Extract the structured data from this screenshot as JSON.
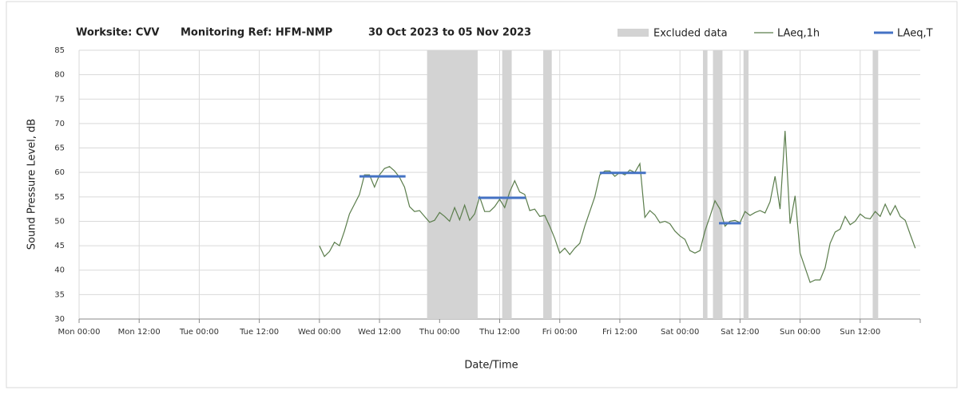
{
  "chart_data": {
    "type": "line",
    "title_parts": [
      "Worksite: CVV",
      "Monitoring Ref: HFM-NMP",
      "30 Oct 2023 to 05 Nov 2023"
    ],
    "y_label": "Sound Pressure Level, dB",
    "x_label": "Date/Time",
    "xlim": [
      0,
      168
    ],
    "xticks": [
      {
        "value": 0,
        "label": "Mon 00:00"
      },
      {
        "value": 12,
        "label": "Mon 12:00"
      },
      {
        "value": 24,
        "label": "Tue 00:00"
      },
      {
        "value": 36,
        "label": "Tue 12:00"
      },
      {
        "value": 48,
        "label": "Wed 00:00"
      },
      {
        "value": 60,
        "label": "Wed 12:00"
      },
      {
        "value": 72,
        "label": "Thu 00:00"
      },
      {
        "value": 84,
        "label": "Thu 12:00"
      },
      {
        "value": 96,
        "label": "Fri 00:00"
      },
      {
        "value": 108,
        "label": "Fri 12:00"
      },
      {
        "value": 120,
        "label": "Sat 00:00"
      },
      {
        "value": 132,
        "label": "Sat 12:00"
      },
      {
        "value": 144,
        "label": "Sun 00:00"
      },
      {
        "value": 156,
        "label": "Sun 12:00"
      }
    ],
    "ylim": [
      30,
      85
    ],
    "yticks": [
      30,
      35,
      40,
      45,
      50,
      55,
      60,
      65,
      70,
      75,
      80,
      85
    ],
    "grid": true,
    "series": [
      {
        "name": "Excluded data",
        "color": "#d3d3d3",
        "ranges": [
          [
            69.5,
            79.6
          ],
          [
            84.5,
            86.4
          ],
          [
            92.7,
            94.4
          ],
          [
            124.6,
            125.5
          ],
          [
            126.6,
            128.5
          ],
          [
            132.7,
            133.7
          ],
          [
            158.5,
            159.6
          ]
        ]
      },
      {
        "name": "LAeq,1h",
        "color": "#5b7d4c",
        "x": [
          48,
          49,
          50,
          51,
          52,
          53,
          54,
          55,
          56,
          57,
          58,
          59,
          60,
          61,
          62,
          63,
          64,
          65,
          66,
          67,
          68,
          69,
          70,
          71,
          72,
          73,
          74,
          75,
          76,
          77,
          78,
          79,
          80,
          81,
          82,
          83,
          84,
          85,
          86,
          87,
          88,
          89,
          90,
          91,
          92,
          93,
          94,
          95,
          96,
          97,
          98,
          99,
          100,
          101,
          102,
          103,
          104,
          105,
          106,
          107,
          108,
          109,
          110,
          111,
          112,
          113,
          114,
          115,
          116,
          117,
          118,
          119,
          120,
          121,
          122,
          123,
          124,
          125,
          126,
          127,
          128,
          129,
          130,
          131,
          132,
          133,
          134,
          135,
          136,
          137,
          138,
          139,
          140,
          141,
          142,
          143,
          144,
          145,
          146,
          147,
          148,
          149,
          150,
          151,
          152,
          153,
          154,
          155,
          156,
          157,
          158,
          159,
          160,
          161,
          162,
          163,
          164,
          165,
          166,
          167
        ],
        "values": [
          45,
          42.8,
          43.8,
          45.7,
          45,
          48,
          51.5,
          53.5,
          55.5,
          59.5,
          59.5,
          57,
          59.5,
          60.8,
          61.2,
          60.3,
          59,
          57,
          53,
          52,
          52.2,
          51,
          49.8,
          50.2,
          51.8,
          51,
          50,
          52.8,
          50.3,
          53.3,
          50.2,
          51.5,
          55,
          52,
          52,
          53,
          54.5,
          52.8,
          56,
          58.3,
          56,
          55.5,
          52.2,
          52.5,
          51,
          51.2,
          49,
          46.5,
          43.5,
          44.5,
          43.2,
          44.5,
          45.5,
          49,
          52,
          55,
          59.5,
          60.3,
          60.3,
          59.2,
          60,
          59.5,
          60.5,
          60,
          61.8,
          50.8,
          52.2,
          51.3,
          49.7,
          50,
          49.5,
          48,
          47,
          46.3,
          44,
          43.5,
          44,
          48,
          51,
          54.2,
          52.5,
          49,
          50,
          50.2,
          49.7,
          52,
          51.2,
          51.8,
          52.2,
          51.7,
          54,
          59.2,
          52.5,
          68.5,
          49.5,
          55.2,
          43.5,
          40.5,
          37.5,
          38,
          38,
          40.5,
          45.5,
          47.8,
          48.4,
          51,
          49.3,
          50,
          51.5,
          50.7,
          50.5,
          52,
          51,
          53.5,
          51.3,
          53.2,
          51,
          50.2,
          47.3,
          44.5
        ]
      },
      {
        "name": "LAeq,T",
        "color": "#4472c4",
        "segments": [
          {
            "x": [
              56,
              65.2
            ],
            "value": 59.2
          },
          {
            "x": [
              79.7,
              89.2
            ],
            "value": 54.8
          },
          {
            "x": [
              104,
              113.2
            ],
            "value": 59.9
          },
          {
            "x": [
              127.8,
              132.2
            ],
            "value": 49.6
          }
        ]
      }
    ]
  }
}
